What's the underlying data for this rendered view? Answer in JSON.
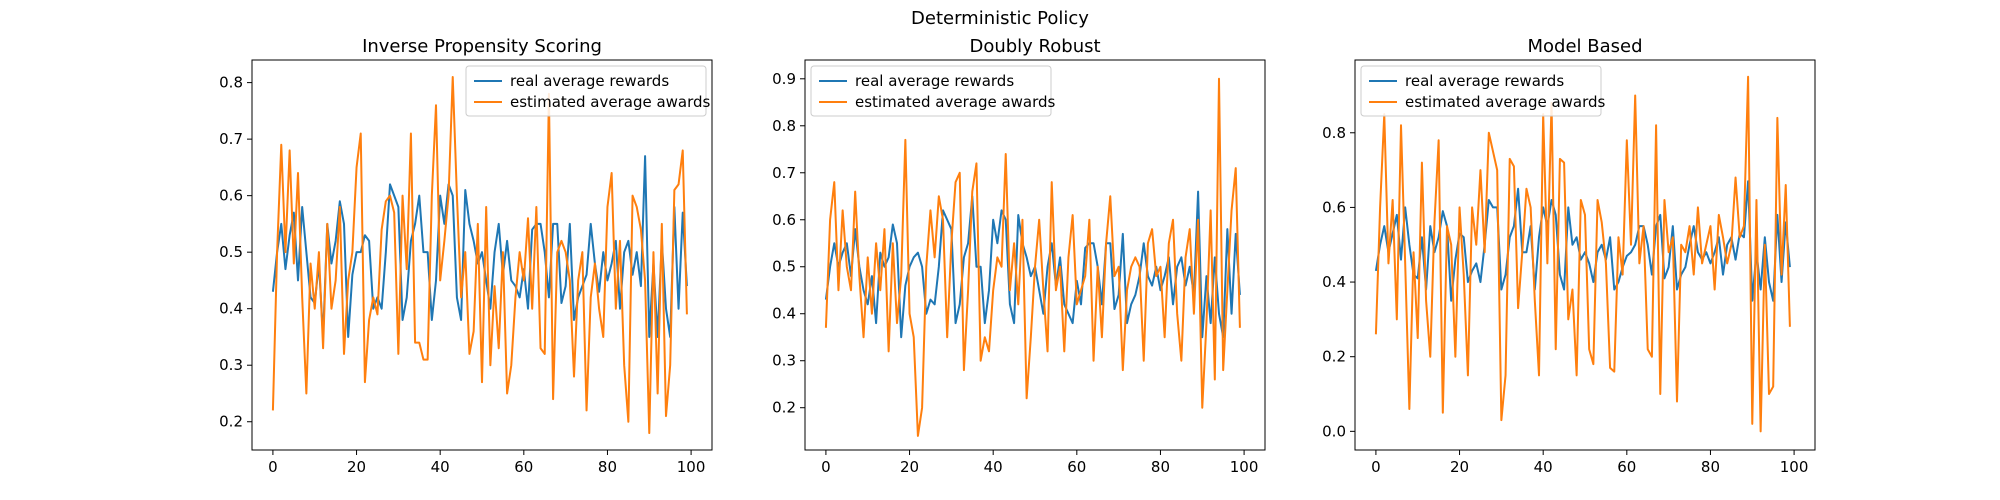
{
  "figure_title": "Deterministic Policy",
  "colors": {
    "real": "#1f77b4",
    "estimated": "#ff7f0e"
  },
  "chart_data": [
    {
      "type": "line",
      "title": "Inverse Propensity Scoring",
      "xlabel": "",
      "ylabel": "",
      "xlim": [
        -5,
        105
      ],
      "ylim": [
        0.15,
        0.84
      ],
      "xticks": [
        0,
        20,
        40,
        60,
        80,
        100
      ],
      "yticks": [
        0.2,
        0.3,
        0.4,
        0.5,
        0.6,
        0.7,
        0.8
      ],
      "grid": false,
      "legend": "top-right",
      "series": [
        {
          "name": "real average rewards",
          "color": "#1f77b4",
          "values": [
            0.43,
            0.5,
            0.55,
            0.47,
            0.53,
            0.57,
            0.45,
            0.58,
            0.5,
            0.42,
            0.41,
            0.48,
            0.35,
            0.55,
            0.48,
            0.52,
            0.59,
            0.55,
            0.35,
            0.46,
            0.5,
            0.5,
            0.53,
            0.52,
            0.4,
            0.42,
            0.4,
            0.5,
            0.62,
            0.6,
            0.58,
            0.38,
            0.42,
            0.52,
            0.55,
            0.6,
            0.5,
            0.5,
            0.38,
            0.45,
            0.6,
            0.55,
            0.62,
            0.6,
            0.42,
            0.38,
            0.61,
            0.55,
            0.52,
            0.48,
            0.5,
            0.45,
            0.4,
            0.5,
            0.55,
            0.46,
            0.52,
            0.45,
            0.44,
            0.42,
            0.47,
            0.4,
            0.54,
            0.55,
            0.55,
            0.5,
            0.42,
            0.55,
            0.55,
            0.41,
            0.44,
            0.55,
            0.38,
            0.42,
            0.44,
            0.46,
            0.55,
            0.48,
            0.43,
            0.5,
            0.45,
            0.48,
            0.52,
            0.4,
            0.5,
            0.52,
            0.46,
            0.5,
            0.44,
            0.67,
            0.35,
            0.48,
            0.35,
            0.52,
            0.4,
            0.35,
            0.58,
            0.4,
            0.57,
            0.44
          ]
        },
        {
          "name": "estimated average awards",
          "color": "#ff7f0e",
          "values": [
            0.22,
            0.5,
            0.69,
            0.5,
            0.68,
            0.48,
            0.64,
            0.42,
            0.25,
            0.48,
            0.4,
            0.5,
            0.33,
            0.55,
            0.4,
            0.45,
            0.58,
            0.32,
            0.45,
            0.5,
            0.65,
            0.71,
            0.27,
            0.38,
            0.42,
            0.39,
            0.54,
            0.59,
            0.6,
            0.57,
            0.32,
            0.6,
            0.47,
            0.71,
            0.34,
            0.34,
            0.31,
            0.31,
            0.6,
            0.76,
            0.45,
            0.52,
            0.6,
            0.81,
            0.6,
            0.42,
            0.5,
            0.32,
            0.36,
            0.55,
            0.27,
            0.58,
            0.3,
            0.44,
            0.33,
            0.5,
            0.25,
            0.3,
            0.42,
            0.5,
            0.45,
            0.56,
            0.4,
            0.58,
            0.33,
            0.32,
            0.78,
            0.24,
            0.5,
            0.52,
            0.5,
            0.45,
            0.28,
            0.45,
            0.5,
            0.22,
            0.42,
            0.48,
            0.4,
            0.35,
            0.58,
            0.64,
            0.4,
            0.52,
            0.3,
            0.2,
            0.6,
            0.58,
            0.54,
            0.45,
            0.18,
            0.5,
            0.25,
            0.55,
            0.21,
            0.3,
            0.61,
            0.62,
            0.68,
            0.39
          ]
        }
      ]
    },
    {
      "type": "line",
      "title": "Doubly Robust",
      "xlabel": "",
      "ylabel": "",
      "xlim": [
        -5,
        105
      ],
      "ylim": [
        0.11,
        0.94
      ],
      "xticks": [
        0,
        20,
        40,
        60,
        80,
        100
      ],
      "yticks": [
        0.2,
        0.3,
        0.4,
        0.5,
        0.6,
        0.7,
        0.8,
        0.9
      ],
      "grid": false,
      "legend": "top-left",
      "series": [
        {
          "name": "real average rewards",
          "color": "#1f77b4",
          "values": [
            0.43,
            0.5,
            0.55,
            0.5,
            0.53,
            0.55,
            0.48,
            0.58,
            0.5,
            0.45,
            0.42,
            0.48,
            0.38,
            0.53,
            0.5,
            0.52,
            0.59,
            0.55,
            0.35,
            0.46,
            0.5,
            0.52,
            0.53,
            0.5,
            0.4,
            0.43,
            0.42,
            0.5,
            0.62,
            0.6,
            0.58,
            0.38,
            0.42,
            0.52,
            0.55,
            0.65,
            0.5,
            0.5,
            0.38,
            0.45,
            0.6,
            0.55,
            0.62,
            0.6,
            0.42,
            0.38,
            0.61,
            0.55,
            0.52,
            0.48,
            0.5,
            0.45,
            0.4,
            0.5,
            0.55,
            0.46,
            0.52,
            0.42,
            0.4,
            0.38,
            0.47,
            0.42,
            0.54,
            0.55,
            0.55,
            0.5,
            0.42,
            0.55,
            0.55,
            0.41,
            0.44,
            0.57,
            0.38,
            0.42,
            0.44,
            0.48,
            0.55,
            0.48,
            0.46,
            0.5,
            0.45,
            0.48,
            0.52,
            0.42,
            0.5,
            0.52,
            0.46,
            0.5,
            0.44,
            0.66,
            0.35,
            0.48,
            0.38,
            0.52,
            0.4,
            0.35,
            0.58,
            0.4,
            0.57,
            0.44
          ]
        },
        {
          "name": "estimated average awards",
          "color": "#ff7f0e",
          "values": [
            0.37,
            0.6,
            0.68,
            0.45,
            0.62,
            0.5,
            0.45,
            0.66,
            0.48,
            0.35,
            0.52,
            0.4,
            0.55,
            0.45,
            0.58,
            0.32,
            0.55,
            0.38,
            0.48,
            0.77,
            0.4,
            0.35,
            0.14,
            0.2,
            0.5,
            0.62,
            0.52,
            0.65,
            0.6,
            0.35,
            0.55,
            0.68,
            0.7,
            0.28,
            0.45,
            0.66,
            0.72,
            0.3,
            0.35,
            0.32,
            0.45,
            0.52,
            0.5,
            0.74,
            0.45,
            0.55,
            0.42,
            0.6,
            0.22,
            0.35,
            0.5,
            0.6,
            0.45,
            0.32,
            0.68,
            0.45,
            0.5,
            0.32,
            0.52,
            0.61,
            0.42,
            0.45,
            0.48,
            0.6,
            0.3,
            0.5,
            0.35,
            0.55,
            0.65,
            0.48,
            0.5,
            0.28,
            0.45,
            0.5,
            0.52,
            0.5,
            0.3,
            0.55,
            0.58,
            0.48,
            0.5,
            0.35,
            0.55,
            0.6,
            0.4,
            0.3,
            0.52,
            0.58,
            0.4,
            0.6,
            0.2,
            0.38,
            0.62,
            0.26,
            0.9,
            0.28,
            0.45,
            0.62,
            0.71,
            0.37
          ]
        }
      ]
    },
    {
      "type": "line",
      "title": "Model Based",
      "xlabel": "",
      "ylabel": "",
      "xlim": [
        -5,
        105
      ],
      "ylim": [
        -0.05,
        0.995
      ],
      "xticks": [
        0,
        20,
        40,
        60,
        80,
        100
      ],
      "yticks": [
        0.0,
        0.2,
        0.4,
        0.6,
        0.8
      ],
      "grid": false,
      "legend": "top-left",
      "series": [
        {
          "name": "real average rewards",
          "color": "#1f77b4",
          "values": [
            0.43,
            0.5,
            0.55,
            0.48,
            0.53,
            0.58,
            0.46,
            0.6,
            0.5,
            0.42,
            0.41,
            0.52,
            0.38,
            0.55,
            0.48,
            0.52,
            0.59,
            0.55,
            0.35,
            0.46,
            0.53,
            0.52,
            0.4,
            0.43,
            0.45,
            0.4,
            0.5,
            0.62,
            0.6,
            0.6,
            0.38,
            0.42,
            0.52,
            0.55,
            0.65,
            0.48,
            0.48,
            0.55,
            0.38,
            0.52,
            0.6,
            0.55,
            0.62,
            0.58,
            0.42,
            0.38,
            0.6,
            0.5,
            0.52,
            0.46,
            0.48,
            0.45,
            0.4,
            0.48,
            0.5,
            0.46,
            0.52,
            0.38,
            0.4,
            0.44,
            0.47,
            0.48,
            0.5,
            0.55,
            0.55,
            0.5,
            0.42,
            0.55,
            0.58,
            0.41,
            0.44,
            0.55,
            0.38,
            0.42,
            0.44,
            0.5,
            0.55,
            0.48,
            0.46,
            0.48,
            0.45,
            0.48,
            0.52,
            0.42,
            0.5,
            0.52,
            0.46,
            0.53,
            0.52,
            0.67,
            0.35,
            0.48,
            0.38,
            0.52,
            0.4,
            0.35,
            0.58,
            0.4,
            0.56,
            0.44
          ]
        },
        {
          "name": "estimated average awards",
          "color": "#ff7f0e",
          "values": [
            0.26,
            0.6,
            0.85,
            0.45,
            0.62,
            0.3,
            0.82,
            0.45,
            0.06,
            0.48,
            0.25,
            0.72,
            0.35,
            0.2,
            0.56,
            0.78,
            0.05,
            0.55,
            0.5,
            0.2,
            0.6,
            0.42,
            0.15,
            0.6,
            0.5,
            0.7,
            0.48,
            0.8,
            0.75,
            0.7,
            0.03,
            0.15,
            0.73,
            0.71,
            0.33,
            0.48,
            0.65,
            0.6,
            0.35,
            0.15,
            0.85,
            0.45,
            0.88,
            0.22,
            0.73,
            0.72,
            0.3,
            0.38,
            0.15,
            0.62,
            0.58,
            0.22,
            0.18,
            0.62,
            0.56,
            0.45,
            0.17,
            0.16,
            0.52,
            0.42,
            0.78,
            0.5,
            0.9,
            0.45,
            0.55,
            0.22,
            0.2,
            0.82,
            0.1,
            0.62,
            0.48,
            0.52,
            0.08,
            0.5,
            0.48,
            0.55,
            0.42,
            0.6,
            0.45,
            0.5,
            0.55,
            0.38,
            0.58,
            0.52,
            0.45,
            0.5,
            0.68,
            0.52,
            0.55,
            0.95,
            0.02,
            0.62,
            0.0,
            0.5,
            0.1,
            0.12,
            0.84,
            0.42,
            0.66,
            0.28
          ]
        }
      ]
    }
  ]
}
